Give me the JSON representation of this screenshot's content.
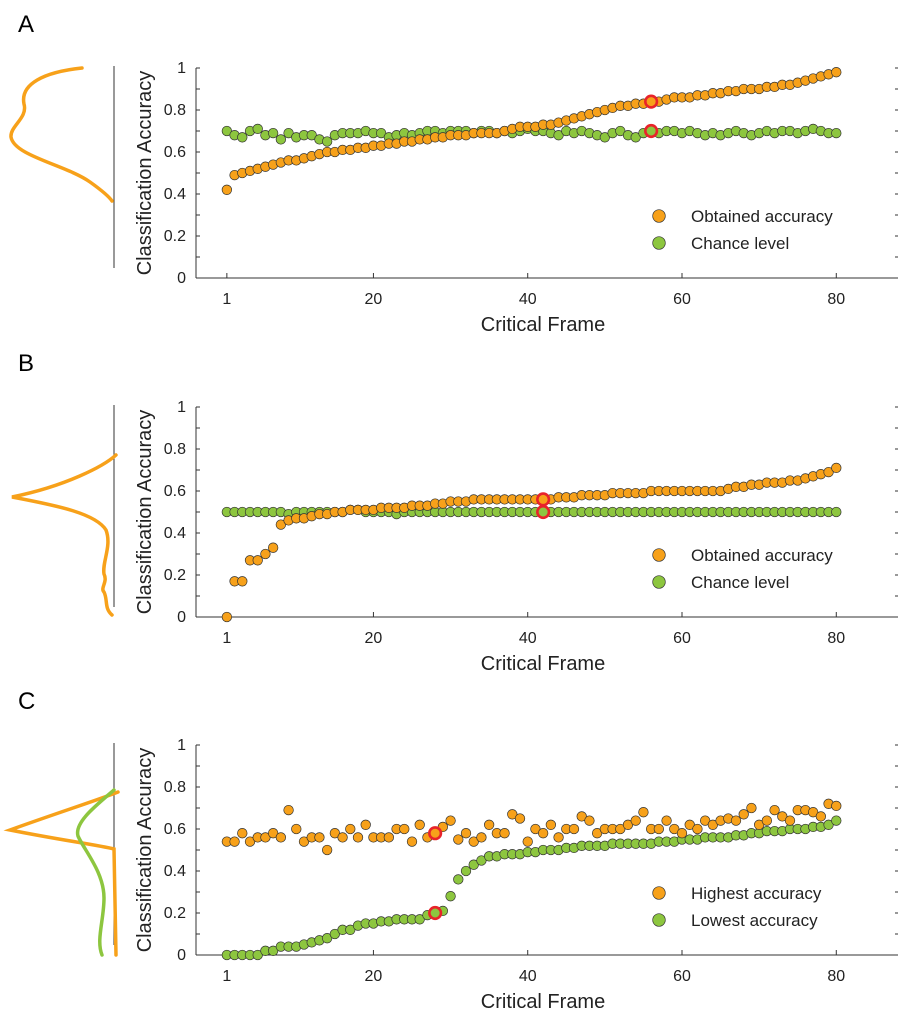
{
  "colors": {
    "orange": "#F7A11A",
    "green": "#8DC63F",
    "highlight": "#E8232A",
    "marker_edge": "#333333"
  },
  "chart_data": [
    {
      "panel_label": "A",
      "type": "scatter",
      "xlabel": "Critical Frame",
      "ylabel": "Classification Accuracy",
      "xlim": [
        -3,
        88
      ],
      "ylim": [
        0,
        1
      ],
      "xticks": [
        "1",
        "20",
        "40",
        "60",
        "80"
      ],
      "xtick_values": [
        1,
        20,
        40,
        60,
        80
      ],
      "yticks": [
        "0",
        "0.2",
        "0.4",
        "0.6",
        "0.8",
        "1"
      ],
      "ytick_values": [
        0,
        0.2,
        0.4,
        0.6,
        0.8,
        1
      ],
      "legend_position": "lower-right",
      "distribution_curves": [
        "orange"
      ],
      "series": [
        {
          "name": "Obtained accuracy",
          "color": "orange",
          "values": [
            0.42,
            0.49,
            0.5,
            0.51,
            0.52,
            0.53,
            0.54,
            0.55,
            0.56,
            0.56,
            0.57,
            0.58,
            0.59,
            0.6,
            0.6,
            0.61,
            0.61,
            0.62,
            0.62,
            0.63,
            0.63,
            0.64,
            0.64,
            0.65,
            0.65,
            0.66,
            0.66,
            0.67,
            0.67,
            0.68,
            0.68,
            0.68,
            0.69,
            0.69,
            0.69,
            0.69,
            0.7,
            0.71,
            0.72,
            0.72,
            0.72,
            0.73,
            0.73,
            0.74,
            0.75,
            0.76,
            0.77,
            0.78,
            0.79,
            0.8,
            0.81,
            0.82,
            0.82,
            0.83,
            0.83,
            0.84,
            0.84,
            0.85,
            0.86,
            0.86,
            0.86,
            0.87,
            0.87,
            0.88,
            0.88,
            0.89,
            0.89,
            0.9,
            0.9,
            0.9,
            0.91,
            0.91,
            0.92,
            0.92,
            0.93,
            0.94,
            0.95,
            0.96,
            0.97,
            0.98
          ],
          "highlight_index": 56
        },
        {
          "name": "Chance level",
          "color": "green",
          "values": [
            0.7,
            0.68,
            0.67,
            0.7,
            0.71,
            0.68,
            0.69,
            0.66,
            0.69,
            0.67,
            0.68,
            0.68,
            0.66,
            0.65,
            0.68,
            0.69,
            0.69,
            0.69,
            0.7,
            0.69,
            0.69,
            0.67,
            0.68,
            0.69,
            0.68,
            0.69,
            0.7,
            0.7,
            0.69,
            0.7,
            0.7,
            0.7,
            0.69,
            0.7,
            0.7,
            0.69,
            0.7,
            0.69,
            0.7,
            0.71,
            0.7,
            0.7,
            0.69,
            0.68,
            0.7,
            0.69,
            0.7,
            0.69,
            0.68,
            0.67,
            0.69,
            0.7,
            0.68,
            0.67,
            0.69,
            0.7,
            0.69,
            0.7,
            0.7,
            0.69,
            0.7,
            0.69,
            0.68,
            0.69,
            0.68,
            0.69,
            0.7,
            0.69,
            0.68,
            0.69,
            0.7,
            0.69,
            0.7,
            0.7,
            0.69,
            0.7,
            0.71,
            0.7,
            0.69,
            0.69
          ],
          "highlight_index": 56
        }
      ]
    },
    {
      "panel_label": "B",
      "type": "scatter",
      "xlabel": "Critical Frame",
      "ylabel": "Classification Accuracy",
      "xlim": [
        -3,
        88
      ],
      "ylim": [
        0,
        1
      ],
      "xticks": [
        "1",
        "20",
        "40",
        "60",
        "80"
      ],
      "xtick_values": [
        1,
        20,
        40,
        60,
        80
      ],
      "yticks": [
        "0",
        "0.2",
        "0.4",
        "0.6",
        "0.8",
        "1"
      ],
      "ytick_values": [
        0,
        0.2,
        0.4,
        0.6,
        0.8,
        1
      ],
      "legend_position": "lower-right",
      "distribution_curves": [
        "orange"
      ],
      "series": [
        {
          "name": "Obtained accuracy",
          "color": "orange",
          "values": [
            0.0,
            0.17,
            0.17,
            0.27,
            0.27,
            0.3,
            0.33,
            0.44,
            0.46,
            0.47,
            0.47,
            0.48,
            0.49,
            0.49,
            0.5,
            0.5,
            0.51,
            0.51,
            0.51,
            0.51,
            0.52,
            0.52,
            0.52,
            0.52,
            0.53,
            0.53,
            0.53,
            0.54,
            0.54,
            0.55,
            0.55,
            0.55,
            0.56,
            0.56,
            0.56,
            0.56,
            0.56,
            0.56,
            0.56,
            0.56,
            0.56,
            0.56,
            0.56,
            0.57,
            0.57,
            0.57,
            0.58,
            0.58,
            0.58,
            0.58,
            0.59,
            0.59,
            0.59,
            0.59,
            0.59,
            0.6,
            0.6,
            0.6,
            0.6,
            0.6,
            0.6,
            0.6,
            0.6,
            0.6,
            0.6,
            0.61,
            0.62,
            0.62,
            0.63,
            0.63,
            0.64,
            0.64,
            0.64,
            0.65,
            0.65,
            0.66,
            0.67,
            0.68,
            0.69,
            0.71
          ],
          "highlight_index": 42
        },
        {
          "name": "Chance level",
          "color": "green",
          "values": [
            0.5,
            0.5,
            0.5,
            0.5,
            0.5,
            0.5,
            0.5,
            0.5,
            0.49,
            0.5,
            0.5,
            0.5,
            0.5,
            0.5,
            0.5,
            0.5,
            0.51,
            0.51,
            0.5,
            0.5,
            0.5,
            0.5,
            0.49,
            0.5,
            0.5,
            0.5,
            0.5,
            0.5,
            0.5,
            0.5,
            0.5,
            0.5,
            0.5,
            0.5,
            0.5,
            0.5,
            0.5,
            0.5,
            0.5,
            0.5,
            0.5,
            0.5,
            0.5,
            0.5,
            0.5,
            0.5,
            0.5,
            0.5,
            0.5,
            0.5,
            0.5,
            0.5,
            0.5,
            0.5,
            0.5,
            0.5,
            0.5,
            0.5,
            0.5,
            0.5,
            0.5,
            0.5,
            0.5,
            0.5,
            0.5,
            0.5,
            0.5,
            0.5,
            0.5,
            0.5,
            0.5,
            0.5,
            0.5,
            0.5,
            0.5,
            0.5,
            0.5,
            0.5,
            0.5,
            0.5
          ],
          "highlight_index": 42
        }
      ]
    },
    {
      "panel_label": "C",
      "type": "scatter",
      "xlabel": "Critical Frame",
      "ylabel": "Classification Accuracy",
      "xlim": [
        -3,
        88
      ],
      "ylim": [
        0,
        1
      ],
      "xticks": [
        "1",
        "20",
        "40",
        "60",
        "80"
      ],
      "xtick_values": [
        1,
        20,
        40,
        60,
        80
      ],
      "yticks": [
        "0",
        "0.2",
        "0.4",
        "0.6",
        "0.8",
        "1"
      ],
      "ytick_values": [
        0,
        0.2,
        0.4,
        0.6,
        0.8,
        1
      ],
      "legend_position": "lower-right",
      "distribution_curves": [
        "orange",
        "green"
      ],
      "series": [
        {
          "name": "Highest accuracy",
          "color": "orange",
          "values": [
            0.54,
            0.54,
            0.58,
            0.54,
            0.56,
            0.56,
            0.58,
            0.56,
            0.69,
            0.6,
            0.54,
            0.56,
            0.56,
            0.5,
            0.58,
            0.56,
            0.6,
            0.56,
            0.62,
            0.56,
            0.56,
            0.56,
            0.6,
            0.6,
            0.54,
            0.62,
            0.56,
            0.58,
            0.61,
            0.64,
            0.55,
            0.58,
            0.54,
            0.56,
            0.62,
            0.58,
            0.58,
            0.67,
            0.65,
            0.54,
            0.6,
            0.58,
            0.62,
            0.56,
            0.6,
            0.6,
            0.66,
            0.64,
            0.58,
            0.6,
            0.6,
            0.6,
            0.62,
            0.64,
            0.68,
            0.6,
            0.6,
            0.64,
            0.6,
            0.58,
            0.62,
            0.6,
            0.64,
            0.62,
            0.64,
            0.65,
            0.64,
            0.67,
            0.7,
            0.62,
            0.64,
            0.69,
            0.66,
            0.64,
            0.69,
            0.69,
            0.68,
            0.66,
            0.72,
            0.71
          ],
          "highlight_index": 28
        },
        {
          "name": "Lowest accuracy",
          "color": "green",
          "values": [
            0.0,
            0.0,
            0.0,
            0.0,
            0.0,
            0.02,
            0.02,
            0.04,
            0.04,
            0.04,
            0.05,
            0.06,
            0.07,
            0.08,
            0.1,
            0.12,
            0.12,
            0.14,
            0.15,
            0.15,
            0.16,
            0.16,
            0.17,
            0.17,
            0.17,
            0.17,
            0.19,
            0.2,
            0.21,
            0.28,
            0.36,
            0.4,
            0.43,
            0.45,
            0.47,
            0.47,
            0.48,
            0.48,
            0.48,
            0.49,
            0.49,
            0.5,
            0.5,
            0.5,
            0.51,
            0.51,
            0.52,
            0.52,
            0.52,
            0.52,
            0.53,
            0.53,
            0.53,
            0.53,
            0.53,
            0.53,
            0.54,
            0.54,
            0.54,
            0.55,
            0.55,
            0.55,
            0.56,
            0.56,
            0.56,
            0.56,
            0.57,
            0.57,
            0.58,
            0.58,
            0.59,
            0.59,
            0.59,
            0.6,
            0.6,
            0.6,
            0.61,
            0.61,
            0.62,
            0.64
          ],
          "highlight_index": 28
        }
      ]
    }
  ]
}
